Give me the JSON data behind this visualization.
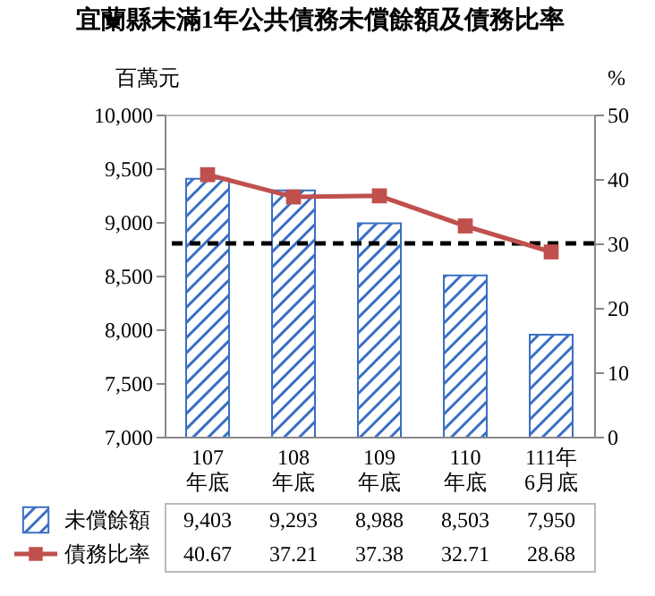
{
  "chart_data": {
    "type": "bar",
    "title": "宜蘭縣未滿1年公共債務未償餘額及債務比率",
    "ylabel": "百萬元",
    "y2label": "%",
    "categories": [
      "107\n年底",
      "108\n年底",
      "109\n年底",
      "110\n年底",
      "111年\n6月底"
    ],
    "series": [
      {
        "name": "未償餘額",
        "color": "#3a6fc4",
        "values": [
          9403,
          9293,
          8988,
          8503,
          7950
        ],
        "value_labels": [
          "9,403",
          "9,293",
          "8,988",
          "8,503",
          "7,950"
        ]
      },
      {
        "name": "債務比率",
        "type": "line",
        "axis": "y2",
        "color": "#c0504d",
        "values": [
          40.67,
          37.21,
          37.38,
          32.71,
          28.68
        ],
        "value_labels": [
          "40.67",
          "37.21",
          "37.38",
          "32.71",
          "28.68"
        ]
      }
    ],
    "ylim": [
      7000,
      10000
    ],
    "yticks": [
      {
        "value": 7000,
        "label": "7,000"
      },
      {
        "value": 7500,
        "label": "7,500"
      },
      {
        "value": 8000,
        "label": "8,000"
      },
      {
        "value": 8500,
        "label": "8,500"
      },
      {
        "value": 9000,
        "label": "9,000"
      },
      {
        "value": 9500,
        "label": "9,500"
      },
      {
        "value": 10000,
        "label": "10,000"
      }
    ],
    "y2lim": [
      0,
      50
    ],
    "y2ticks": [
      0,
      10,
      20,
      30,
      40,
      50
    ],
    "ref_lines": [
      {
        "axis": "y2",
        "value": 30,
        "color": "#000000",
        "line_style": "dashed"
      }
    ],
    "marker": "square",
    "legend": "bottom"
  }
}
